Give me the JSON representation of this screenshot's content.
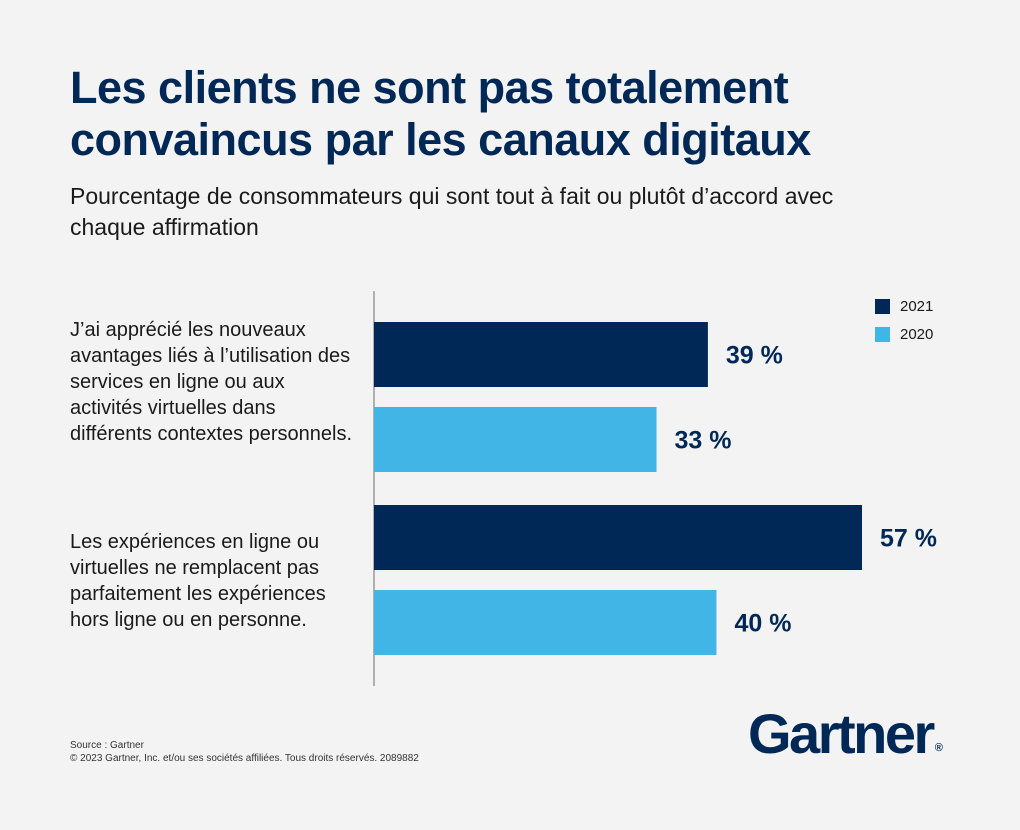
{
  "title": "Les clients ne sont pas totalement convaincus par les canaux digitaux",
  "subtitle": "Pourcentage de consommateurs qui sont tout à fait ou plutôt d’accord avec chaque affirmation",
  "chart_data": {
    "type": "bar",
    "orientation": "horizontal",
    "categories": [
      "J’ai apprécié les nouveaux avantages liés à l’utilisation des services en ligne ou aux activités virtuelles dans différents contextes personnels.",
      "Les expériences en ligne ou virtuelles ne remplacent pas parfaitement les expériences hors ligne ou en personne."
    ],
    "series": [
      {
        "name": "2021",
        "values": [
          39,
          57
        ],
        "labels": [
          "39 %",
          "57 %"
        ],
        "color": "#002856"
      },
      {
        "name": "2020",
        "values": [
          33,
          40
        ],
        "labels": [
          "33 %",
          "40 %"
        ],
        "color": "#41b6e6"
      }
    ],
    "xlim": [
      0,
      60
    ],
    "grid": false,
    "legend": "top-right"
  },
  "legend": {
    "item_2021": "2021",
    "item_2020": "2020"
  },
  "source": {
    "line1": "Source : Gartner",
    "line2": "© 2023 Gartner, Inc. et/ou ses sociétés affiliées. Tous droits réservés. 2089882"
  },
  "logo": {
    "text": "Gartner",
    "mark": "®"
  }
}
